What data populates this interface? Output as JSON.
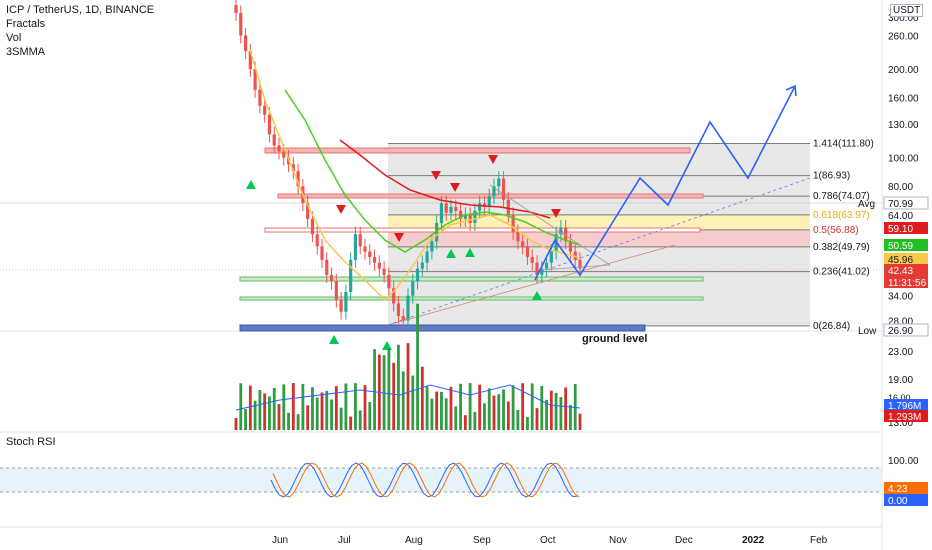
{
  "header": {
    "symbol": "ICP / TetherUS, 1D, BINANCE",
    "indicators": [
      "Fractals",
      "Vol",
      "3SMMA"
    ],
    "currency": "USDT"
  },
  "rsi_panel": {
    "title": "Stoch RSI"
  },
  "colors": {
    "up": "#26a69a",
    "down": "#ef5350",
    "green_bar": "#2e9c43",
    "red_bar": "#d32f2f",
    "blue": "#2962ff",
    "yellow": "#f7c948",
    "green_line": "#43d11b",
    "red_line": "#e01b1b",
    "fib_gray": "#b8b8b8",
    "fib_yellow": "#fff2b3",
    "fib_pink": "#f9c4c4"
  },
  "chart_data": {
    "type": "candlestick",
    "x_axis_labels": [
      "Jun",
      "Jul",
      "Aug",
      "Sep",
      "Oct",
      "Nov",
      "Dec",
      "2022",
      "Feb"
    ],
    "price_axis_ticks": [
      "300.00",
      "260.00",
      "200.00",
      "160.00",
      "130.00",
      "100.00",
      "80.00",
      "64.00",
      "50.00",
      "34.00",
      "28.00",
      "23.00",
      "19.00",
      "16.00",
      "13.00"
    ],
    "price_badges": [
      {
        "label": "Avg",
        "value": "70.99",
        "color": "#ffffff",
        "text": "#131722"
      },
      {
        "value": "59.10",
        "color": "#e01b1b",
        "text": "#ffffff"
      },
      {
        "value": "50.59",
        "color": "#20c020",
        "text": "#ffffff"
      },
      {
        "value": "45.96",
        "color": "#f7c948",
        "text": "#131722"
      },
      {
        "value": "42.43",
        "color": "#e53935",
        "text": "#ffffff",
        "sub": "11:31:56"
      },
      {
        "label": "Low",
        "value": "26.90",
        "color": "#ffffff",
        "text": "#131722"
      }
    ],
    "volume_badges": [
      "1.796M",
      "1.293M"
    ],
    "rsi_badges": [
      "4.23",
      "0.00"
    ],
    "rsi_ticks": [
      "100.00",
      "0.00"
    ],
    "fib_levels": [
      {
        "label": "1.414(111.80)",
        "value": 111.8
      },
      {
        "label": "1(86.93)",
        "value": 86.93
      },
      {
        "label": "0.786(74.07)",
        "value": 74.07
      },
      {
        "label": "0.618(63.97)",
        "value": 63.97
      },
      {
        "label": "0.5(56.88)",
        "value": 56.88
      },
      {
        "label": "0.382(49.79)",
        "value": 49.79
      },
      {
        "label": "0.236(41.02)",
        "value": 41.02
      },
      {
        "label": "0(26.84)",
        "value": 26.84
      }
    ],
    "annotations": [
      "ground level"
    ],
    "candles_close_approx": [
      310,
      260,
      230,
      200,
      170,
      150,
      140,
      120,
      110,
      105,
      100,
      95,
      90,
      80,
      70,
      62,
      55,
      50,
      45,
      40,
      38,
      33,
      30,
      35,
      45,
      55,
      50,
      48,
      46,
      44,
      42,
      40,
      36,
      32,
      29,
      28,
      34,
      38,
      42,
      44,
      48,
      52,
      60,
      70,
      65,
      68,
      66,
      62,
      64,
      60,
      66,
      70,
      68,
      74,
      80,
      85,
      72,
      64,
      56,
      52,
      50,
      46,
      44,
      40,
      42,
      44,
      48,
      55,
      58,
      52,
      48,
      45,
      42
    ]
  }
}
